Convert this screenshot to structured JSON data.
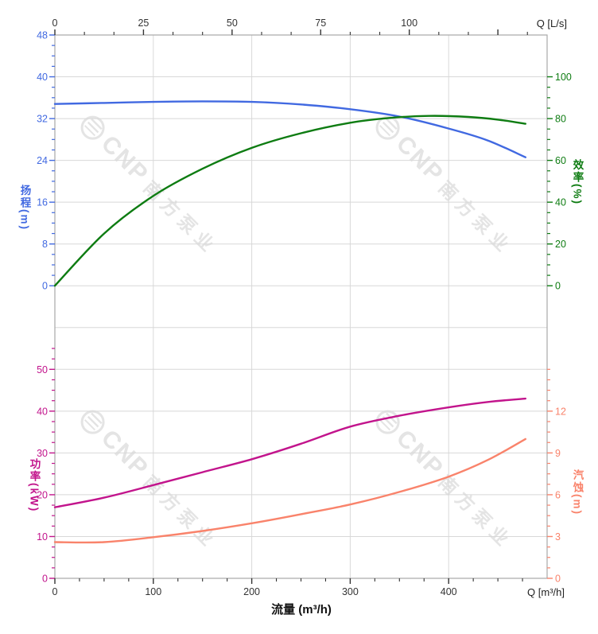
{
  "watermark": {
    "brand": "CNP",
    "name": "南方泵业",
    "color": "#e4e4e4"
  },
  "colors": {
    "head": "#4169e1",
    "efficiency": "#0e7c12",
    "power": "#c2148c",
    "npsh": "#f9836b",
    "grid": "#d8d8d8",
    "frame": "#a8a8a8",
    "axis_black": "#333333",
    "background": "#ffffff"
  },
  "top_x_axis": {
    "label": "Q [L/s]",
    "ticks": [
      0,
      25,
      50,
      75,
      100
    ],
    "unlabeled_tick": 125,
    "max_ls": 138.89
  },
  "bottom_x_axis": {
    "label": "Q [m³/h]",
    "axis_title": "流量 (m³/h)",
    "ticks": [
      0,
      100,
      200,
      300,
      400
    ],
    "max": 500
  },
  "chart_data": [
    {
      "type": "line",
      "x_unit": "m³/h",
      "x_range": [
        0,
        500
      ],
      "grid": true,
      "left_axis": {
        "label": "扬程",
        "unit": "(m)",
        "color": "#4169e1",
        "ticks": [
          48,
          40,
          32,
          24,
          16,
          8,
          0
        ],
        "range": [
          0,
          48
        ],
        "minor_step": 2,
        "minor_max": 48
      },
      "right_axis": {
        "label": "效率",
        "unit": "(%)",
        "color": "#0e7c12",
        "ticks": [
          100,
          80,
          60,
          40,
          20,
          0
        ],
        "range": [
          0,
          100
        ],
        "minor_step": 5,
        "minor_max": 100
      },
      "series": [
        {
          "name": "head",
          "axis": "left",
          "color": "#4169e1",
          "points": [
            [
              0,
              34.8
            ],
            [
              50,
              35.0
            ],
            [
              100,
              35.2
            ],
            [
              150,
              35.3
            ],
            [
              200,
              35.2
            ],
            [
              250,
              34.7
            ],
            [
              300,
              33.8
            ],
            [
              350,
              32.4
            ],
            [
              400,
              30.1
            ],
            [
              440,
              27.8
            ],
            [
              478,
              24.6
            ]
          ]
        },
        {
          "name": "efficiency",
          "axis": "right",
          "color": "#0e7c12",
          "points": [
            [
              0,
              0
            ],
            [
              50,
              25
            ],
            [
              100,
              43
            ],
            [
              150,
              56
            ],
            [
              200,
              66
            ],
            [
              250,
              73
            ],
            [
              300,
              78
            ],
            [
              340,
              80.3
            ],
            [
              380,
              81.3
            ],
            [
              420,
              80.8
            ],
            [
              450,
              79.5
            ],
            [
              478,
              77.5
            ]
          ]
        }
      ]
    },
    {
      "type": "line",
      "x_unit": "m³/h",
      "x_range": [
        0,
        500
      ],
      "grid": true,
      "left_axis": {
        "label": "功率",
        "unit": "(kW)",
        "color": "#c2148c",
        "ticks": [
          50,
          40,
          30,
          20,
          10,
          0
        ],
        "range": [
          0,
          50
        ],
        "minor_step": 2.5,
        "minor_max": 55
      },
      "right_axis": {
        "label": "汽蚀",
        "unit": "(m)",
        "color": "#f9836b",
        "ticks": [
          12,
          9,
          6,
          3,
          0
        ],
        "range": [
          0,
          12
        ],
        "minor_step": 0.75,
        "minor_max": 15
      },
      "series": [
        {
          "name": "power",
          "axis": "left",
          "color": "#c2148c",
          "points": [
            [
              0,
              17.0
            ],
            [
              50,
              19.3
            ],
            [
              100,
              22.3
            ],
            [
              150,
              25.4
            ],
            [
              200,
              28.5
            ],
            [
              250,
              32.2
            ],
            [
              300,
              36.3
            ],
            [
              350,
              38.9
            ],
            [
              400,
              40.9
            ],
            [
              440,
              42.2
            ],
            [
              478,
              43.0
            ]
          ]
        },
        {
          "name": "npsh",
          "axis": "right",
          "color": "#f9836b",
          "points": [
            [
              0,
              2.6
            ],
            [
              50,
              2.6
            ],
            [
              100,
              2.95
            ],
            [
              150,
              3.4
            ],
            [
              200,
              3.95
            ],
            [
              250,
              4.6
            ],
            [
              300,
              5.3
            ],
            [
              350,
              6.2
            ],
            [
              400,
              7.3
            ],
            [
              440,
              8.5
            ],
            [
              478,
              10.0
            ]
          ]
        }
      ]
    }
  ]
}
